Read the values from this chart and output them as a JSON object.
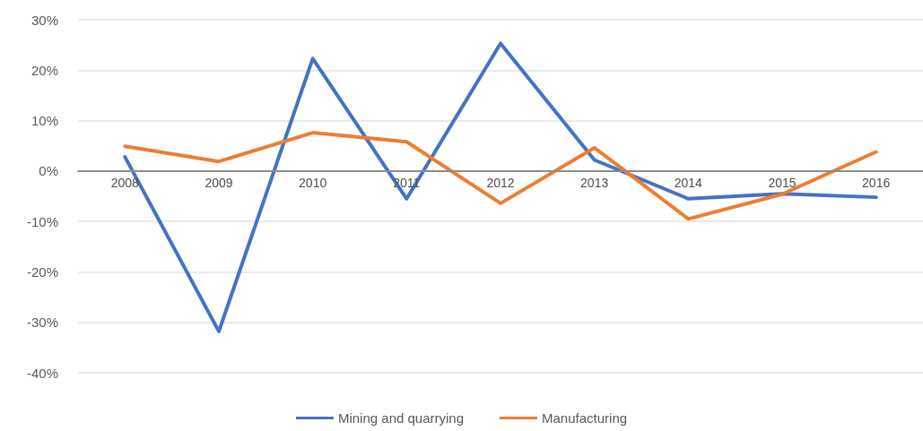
{
  "chart_data": {
    "type": "line",
    "categories": [
      "2008",
      "2009",
      "2010",
      "2011",
      "2012",
      "2013",
      "2014",
      "2015",
      "2016"
    ],
    "series": [
      {
        "name": "Mining and quarrying",
        "color": "#4472c4",
        "values": [
          2.8,
          -31.8,
          22.3,
          -5.5,
          25.3,
          2.2,
          -5.5,
          -4.5,
          -5.2
        ]
      },
      {
        "name": "Manufacturing",
        "color": "#ed7d31",
        "values": [
          4.9,
          1.9,
          7.6,
          5.8,
          -6.4,
          4.6,
          -9.5,
          -4.6,
          3.8
        ]
      }
    ],
    "ylim": [
      -40,
      30
    ],
    "yticks": [
      {
        "value": -40,
        "label": "-40%"
      },
      {
        "value": -30,
        "label": "-30%"
      },
      {
        "value": -20,
        "label": "-20%"
      },
      {
        "value": -10,
        "label": "-10%"
      },
      {
        "value": 0,
        "label": "0%"
      },
      {
        "value": 10,
        "label": "10%"
      },
      {
        "value": 20,
        "label": "20%"
      },
      {
        "value": 30,
        "label": "30%"
      }
    ],
    "grid": "y",
    "legend": "bottom",
    "marker": "none",
    "line_style": "solid"
  }
}
